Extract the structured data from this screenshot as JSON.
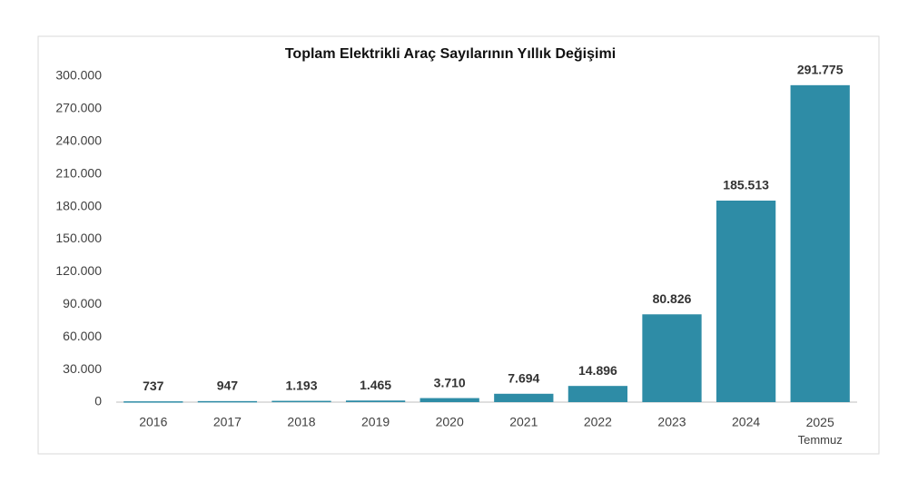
{
  "chart_data": {
    "type": "bar",
    "title": "Toplam Elektrikli Araç Sayılarının Yıllık Değişimi",
    "categories": [
      "2016",
      "2017",
      "2018",
      "2019",
      "2020",
      "2021",
      "2022",
      "2023",
      "2024",
      "2025 Temmuz"
    ],
    "values": [
      737,
      947,
      1193,
      1465,
      3710,
      7694,
      14896,
      80826,
      185513,
      291775
    ],
    "value_labels": [
      "737",
      "947",
      "1.193",
      "1.465",
      "3.710",
      "7.694",
      "14.896",
      "80.826",
      "185.513",
      "291.775"
    ],
    "color": "#2e8ca6",
    "ylim": [
      0,
      300000
    ],
    "yticks": [
      0,
      {
        "value": 30000,
        "label": "30.000"
      },
      {
        "value": 60000,
        "label": "60.000"
      },
      {
        "value": 90000,
        "label": "90.000"
      },
      {
        "value": 120000,
        "label": "120.000"
      },
      {
        "value": 150000,
        "label": "150.000"
      },
      {
        "value": 180000,
        "label": "180.000"
      },
      {
        "value": 210000,
        "label": "210.000"
      },
      {
        "value": 240000,
        "label": "240.000"
      },
      {
        "value": 270000,
        "label": "270.000"
      },
      {
        "value": 300000,
        "label": "300.000"
      }
    ],
    "grid": false
  }
}
